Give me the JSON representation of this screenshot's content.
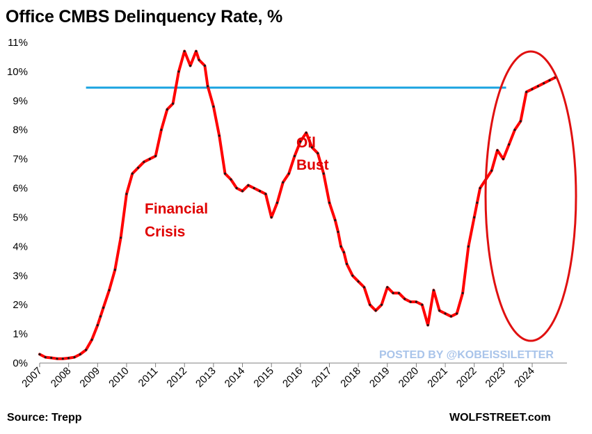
{
  "title": "Office CMBS Delinquency Rate, %",
  "source": "Source: Trepp",
  "site": "WOLFSTREET.com",
  "watermark": "POSTED BY @KOBEISSILETTER",
  "annotations": {
    "crisis_line1": "Financial",
    "crisis_line2": "Crisis",
    "oil_line1": "Oil",
    "oil_line2": "Bust"
  },
  "colors": {
    "series_line": "#ff0000",
    "series_markers": "#1a1a1a",
    "reference_line": "#1aa3e0",
    "highlight_ellipse": "#e01010",
    "annotation_text": "#e00000",
    "watermark": "#a9c4ea"
  },
  "chart_data": {
    "type": "line",
    "title": "Office CMBS Delinquency Rate, %",
    "xlabel": "",
    "ylabel": "",
    "ylim": [
      0,
      11
    ],
    "xlim": [
      2007.0,
      2025.2
    ],
    "y_ticks": [
      "0%",
      "1%",
      "2%",
      "3%",
      "4%",
      "5%",
      "6%",
      "7%",
      "8%",
      "9%",
      "10%",
      "11%"
    ],
    "x_ticks": [
      "2007",
      "2008",
      "2009",
      "2010",
      "2011",
      "2012",
      "2013",
      "2014",
      "2015",
      "2016",
      "2017",
      "2018",
      "2019",
      "2020",
      "2021",
      "2022",
      "2023",
      "2024"
    ],
    "grid": false,
    "legend": "none",
    "reference_line": {
      "y": 9.45,
      "x_start": 2008.6,
      "x_end": 2023.1
    },
    "highlight": "ellipse around 2023-2024 surge",
    "series": [
      {
        "x": [
          2007.0,
          2007.2,
          2007.4,
          2007.6,
          2007.8,
          2008.0,
          2008.2,
          2008.4,
          2008.6,
          2008.8,
          2009.0,
          2009.1,
          2009.2,
          2009.4,
          2009.6,
          2009.8,
          2010.0,
          2010.2,
          2010.4,
          2010.6,
          2010.8,
          2011.0,
          2011.2,
          2011.4,
          2011.6,
          2011.8,
          2012.0,
          2012.2,
          2012.4,
          2012.5,
          2012.7,
          2012.8,
          2013.0,
          2013.2,
          2013.4,
          2013.6,
          2013.8,
          2014.0,
          2014.2,
          2014.4,
          2014.6,
          2014.8,
          2015.0,
          2015.2,
          2015.4,
          2015.6,
          2015.8,
          2016.0,
          2016.2,
          2016.4,
          2016.6,
          2016.8,
          2017.0,
          2017.2,
          2017.3,
          2017.4,
          2017.5,
          2017.6,
          2017.8,
          2018.0,
          2018.2,
          2018.4,
          2018.6,
          2018.8,
          2019.0,
          2019.2,
          2019.4,
          2019.6,
          2019.8,
          2020.0,
          2020.2,
          2020.4,
          2020.6,
          2020.8,
          2021.0,
          2021.2,
          2021.4,
          2021.6,
          2021.8,
          2022.0,
          2022.1,
          2022.2,
          2022.4,
          2022.6,
          2022.8,
          2023.0,
          2023.2,
          2023.4,
          2023.6,
          2023.8,
          2024.0,
          2024.2,
          2024.4,
          2024.6,
          2024.8
        ],
        "y": [
          0.3,
          0.2,
          0.18,
          0.15,
          0.15,
          0.17,
          0.2,
          0.3,
          0.45,
          0.8,
          1.3,
          1.6,
          1.9,
          2.5,
          3.2,
          4.3,
          5.8,
          6.5,
          6.7,
          6.9,
          7.0,
          7.1,
          8.0,
          8.7,
          8.9,
          10.0,
          10.7,
          10.2,
          10.7,
          10.4,
          10.2,
          9.5,
          8.8,
          7.8,
          6.5,
          6.3,
          6.0,
          5.9,
          6.1,
          6.0,
          5.9,
          5.8,
          5.0,
          5.5,
          6.2,
          6.5,
          7.1,
          7.6,
          7.9,
          7.4,
          7.2,
          6.5,
          5.5,
          4.9,
          4.5,
          4.0,
          3.8,
          3.4,
          3.0,
          2.8,
          2.6,
          2.0,
          1.8,
          2.0,
          2.6,
          2.4,
          2.4,
          2.2,
          2.1,
          2.1,
          2.0,
          1.3,
          2.5,
          1.8,
          1.7,
          1.6,
          1.7,
          2.4,
          4.0,
          5.0,
          5.5,
          6.0,
          6.3,
          6.6,
          7.3,
          7.0,
          7.5,
          8.0,
          8.3,
          9.3,
          9.4,
          9.5,
          9.6,
          9.7,
          9.8
        ],
        "note": "approximate trace of the red series"
      }
    ]
  }
}
